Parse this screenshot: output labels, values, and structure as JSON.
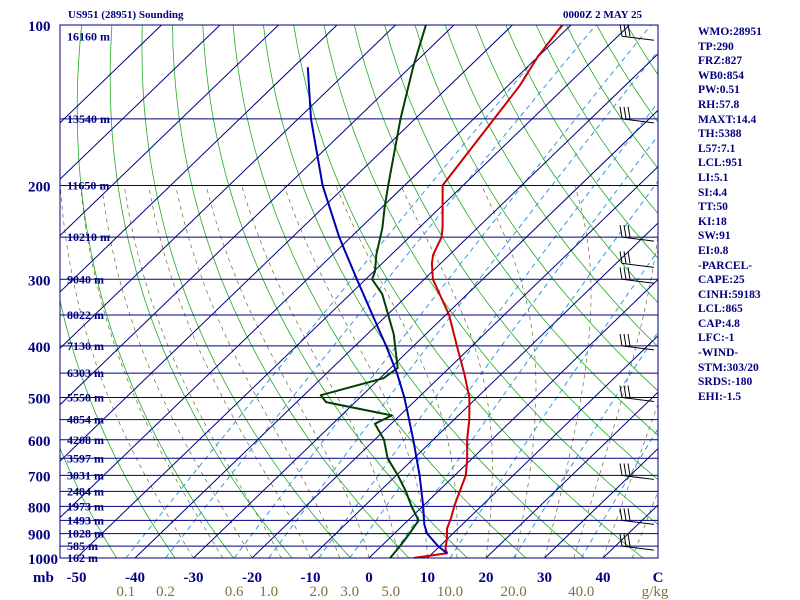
{
  "header": {
    "station": "US951 (28951) Sounding",
    "datetime": "0000Z  2 MAY 25"
  },
  "side_panel": [
    "WMO:28951",
    "TP:290",
    "FRZ:827",
    "WB0:854",
    "PW:0.51",
    "RH:57.8",
    "MAXT:14.4",
    "TH:5388",
    "L57:7.1",
    "LCL:951",
    "LI:5.1",
    "SI:4.4",
    "TT:50",
    "KI:18",
    "SW:91",
    "EI:0.8",
    "-PARCEL-",
    "CAPE:25",
    "CINH:59183",
    "LCL:865",
    "CAP:4.8",
    "LFC:-1",
    "-WIND-",
    "STM:303/20",
    "SRDS:-180",
    "EHI:-1.5"
  ],
  "chart_data": {
    "type": "line",
    "title": "US951 (28951) Sounding",
    "xlabel": "C",
    "ylabel": "mb",
    "xlim": [
      -50,
      50
    ],
    "ylim": [
      1000,
      100
    ],
    "y_scale": "log",
    "grid": true,
    "pressure_ticks": [
      "100",
      "200",
      "300",
      "400",
      "500",
      "600",
      "700",
      "800",
      "900",
      "1000"
    ],
    "temperature_ticks": [
      "-50",
      "-40",
      "-30",
      "-20",
      "-10",
      "0",
      "10",
      "20",
      "30",
      "40",
      "C"
    ],
    "y_unit_label": "mb",
    "mixing_ratio_ticks": [
      "0.1",
      "0.2",
      "0.6",
      "1.0",
      "2.0",
      "3.0",
      "5.0",
      "10.0",
      "20.0",
      "40.0",
      "g/kg"
    ],
    "mixing_ratio_unit": "g/kg",
    "height_levels": [
      {
        "p": 105,
        "label": "16160 m"
      },
      {
        "p": 150,
        "label": "13540 m"
      },
      {
        "p": 200,
        "label": "11650 m"
      },
      {
        "p": 250,
        "label": "10210 m"
      },
      {
        "p": 300,
        "label": "9040 m"
      },
      {
        "p": 350,
        "label": "8022 m"
      },
      {
        "p": 400,
        "label": "7130 m"
      },
      {
        "p": 450,
        "label": "6303 m"
      },
      {
        "p": 500,
        "label": "5550 m"
      },
      {
        "p": 550,
        "label": "4854 m"
      },
      {
        "p": 600,
        "label": "4208 m"
      },
      {
        "p": 650,
        "label": "3597 m"
      },
      {
        "p": 700,
        "label": "3031 m"
      },
      {
        "p": 750,
        "label": "2484 m"
      },
      {
        "p": 800,
        "label": "1973 m"
      },
      {
        "p": 850,
        "label": "1493 m"
      },
      {
        "p": 900,
        "label": "1028 m"
      },
      {
        "p": 950,
        "label": "585 m"
      },
      {
        "p": 1000,
        "label": "162 m"
      }
    ],
    "series": [
      {
        "color": "#cc0000",
        "points": [
          [
            1000,
            7.6
          ],
          [
            980,
            12.5
          ],
          [
            960,
            11.4
          ],
          [
            920,
            9.9
          ],
          [
            880,
            8.1
          ],
          [
            840,
            6.9
          ],
          [
            800,
            5.4
          ],
          [
            750,
            3.7
          ],
          [
            700,
            1.9
          ],
          [
            650,
            -0.9
          ],
          [
            600,
            -4.2
          ],
          [
            550,
            -7.4
          ],
          [
            500,
            -11.3
          ],
          [
            450,
            -16.5
          ],
          [
            400,
            -22.6
          ],
          [
            350,
            -29.4
          ],
          [
            300,
            -38.5
          ],
          [
            280,
            -41.5
          ],
          [
            270,
            -42.8
          ],
          [
            250,
            -44.5
          ],
          [
            240,
            -46.0
          ],
          [
            200,
            -53.5
          ],
          [
            150,
            -56.5
          ],
          [
            130,
            -58.0
          ],
          [
            115,
            -60.0
          ],
          [
            100,
            -61.5
          ]
        ]
      },
      {
        "color": "#004000",
        "points": [
          [
            1000,
            3.6
          ],
          [
            950,
            3.2
          ],
          [
            900,
            2.6
          ],
          [
            850,
            1.8
          ],
          [
            800,
            -1.9
          ],
          [
            750,
            -5.5
          ],
          [
            700,
            -9.7
          ],
          [
            650,
            -14.5
          ],
          [
            600,
            -18.4
          ],
          [
            560,
            -22.8
          ],
          [
            540,
            -21.4
          ],
          [
            510,
            -35.0
          ],
          [
            495,
            -37.1
          ],
          [
            460,
            -29.4
          ],
          [
            440,
            -28.8
          ],
          [
            380,
            -35.5
          ],
          [
            320,
            -44.5
          ],
          [
            300,
            -48.9
          ],
          [
            290,
            -49.8
          ],
          [
            270,
            -52.5
          ],
          [
            240,
            -56.3
          ],
          [
            220,
            -59.5
          ],
          [
            200,
            -62.8
          ],
          [
            150,
            -72.5
          ],
          [
            120,
            -79.5
          ],
          [
            100,
            -84.8
          ]
        ]
      },
      {
        "color": "#0000b0",
        "points": [
          [
            980,
            12.5
          ],
          [
            950,
            9.7
          ],
          [
            900,
            5.6
          ],
          [
            865,
            3.5
          ],
          [
            800,
            0.1
          ],
          [
            700,
            -6.0
          ],
          [
            600,
            -13.4
          ],
          [
            500,
            -22.4
          ],
          [
            450,
            -28.0
          ],
          [
            400,
            -34.7
          ],
          [
            350,
            -42.5
          ],
          [
            300,
            -51.5
          ],
          [
            250,
            -62.0
          ],
          [
            200,
            -74.0
          ],
          [
            150,
            -87.8
          ],
          [
            120,
            -97.5
          ]
        ]
      }
    ],
    "wind_pressures": [
      105,
      150,
      250,
      280,
      300,
      400,
      500,
      700,
      850,
      950
    ]
  }
}
